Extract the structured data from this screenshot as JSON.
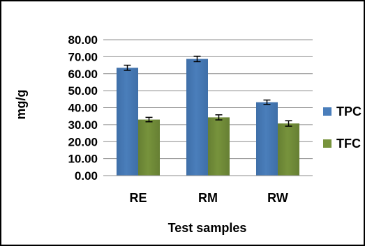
{
  "chart_data": {
    "type": "bar",
    "categories": [
      "RE",
      "RM",
      "RW"
    ],
    "series": [
      {
        "name": "TPC",
        "values": [
          63.5,
          68.7,
          43.2
        ],
        "errors": [
          1.5,
          1.6,
          1.3
        ],
        "color": "#4A7EBB"
      },
      {
        "name": "TFC",
        "values": [
          33.0,
          34.3,
          30.7
        ],
        "errors": [
          1.3,
          1.5,
          1.6
        ],
        "color": "#77933C"
      }
    ],
    "title": "",
    "xlabel": "Test samples",
    "ylabel": "mg/g",
    "ylim": [
      0,
      80
    ],
    "yticks": [
      "0.00",
      "10.00",
      "20.00",
      "30.00",
      "40.00",
      "50.00",
      "60.00",
      "70.00",
      "80.00"
    ],
    "grid": true,
    "legend_position": "right"
  }
}
